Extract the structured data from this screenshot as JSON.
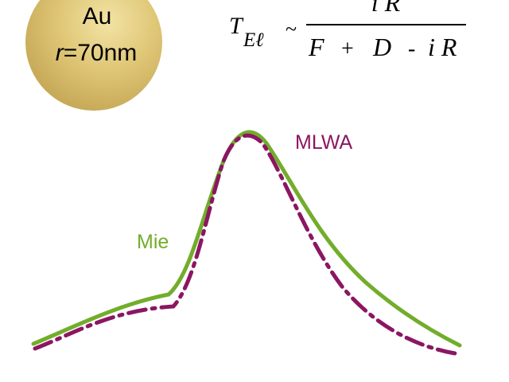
{
  "sphere": {
    "material": "Au",
    "radius_symbol": "r",
    "radius_value": "=70nm",
    "color": "#d9c06b"
  },
  "formula": {
    "lhs_symbol": "T",
    "lhs_subscript": "Eℓ",
    "relation": "~",
    "numerator": "i R",
    "denominator_F": "F",
    "denominator_plus": "+",
    "denominator_D": "D",
    "denominator_minus": "-",
    "denominator_iR": "i R"
  },
  "curves": {
    "mie": {
      "label": "Mie",
      "color": "#72ad2b",
      "style": "solid"
    },
    "mlwa": {
      "label": "MLWA",
      "color": "#8b1662",
      "style": "dash-dot"
    }
  }
}
